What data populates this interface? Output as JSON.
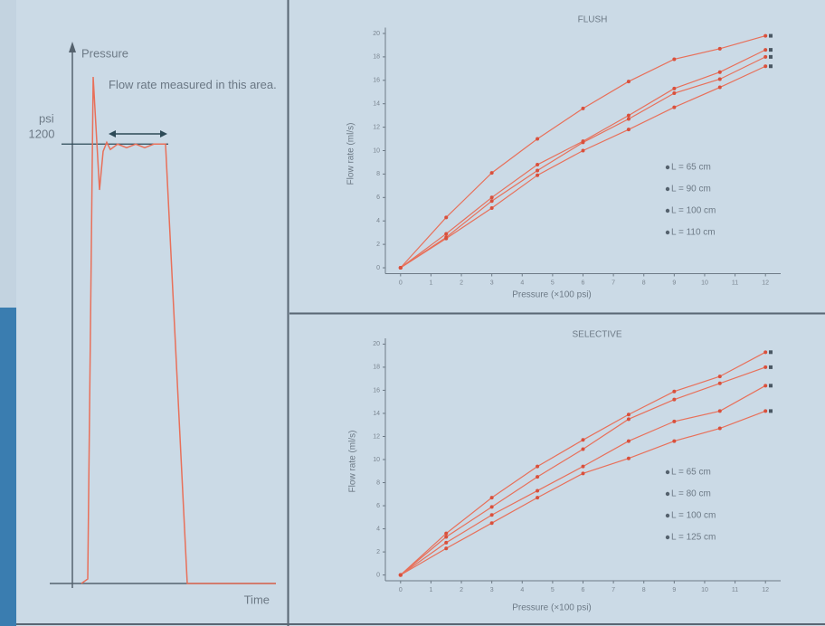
{
  "chart_data": [
    {
      "type": "schematic",
      "ylabel": "Pressure",
      "yunit": "psi",
      "xlabel": "Time",
      "annotation": "Flow rate measured in this area.",
      "ylim": [
        0,
        1470
      ],
      "yticks": [
        1200
      ],
      "color": "#e8705a"
    },
    {
      "type": "line",
      "title": "FLUSH",
      "xlabel": "Pressure (×100 psi)",
      "ylabel": "Flow rate (ml/s)",
      "x": [
        0,
        1.5,
        3,
        4.5,
        6,
        7.5,
        9,
        10.5,
        12
      ],
      "xlim": [
        -0.5,
        12.5
      ],
      "xticks": [
        0,
        1,
        2,
        3,
        4,
        5,
        6,
        7,
        8,
        9,
        10,
        11,
        12
      ],
      "ylim": [
        -0.5,
        20.5
      ],
      "yticks": [
        0,
        2,
        4,
        6,
        8,
        10,
        12,
        14,
        16,
        18,
        20
      ],
      "series": [
        {
          "name": "L = 65 cm",
          "color": "#e8705a",
          "values": [
            0,
            4.3,
            8.1,
            11,
            13.6,
            15.9,
            17.8,
            18.7,
            19.8
          ]
        },
        {
          "name": "L = 90 cm",
          "color": "#e8705a",
          "values": [
            0,
            2.9,
            6.0,
            8.8,
            10.8,
            13,
            15.3,
            16.7,
            18.6
          ]
        },
        {
          "name": "L = 100 cm",
          "color": "#e8705a",
          "values": [
            0,
            2.6,
            5.7,
            8.3,
            10.7,
            12.7,
            14.9,
            16.1,
            18
          ]
        },
        {
          "name": "L = 110 cm",
          "color": "#e8705a",
          "values": [
            0,
            2.5,
            5.1,
            7.9,
            10,
            11.8,
            13.7,
            15.4,
            17.2
          ]
        }
      ]
    },
    {
      "type": "line",
      "title": "SELECTIVE",
      "xlabel": "Pressure (×100 psi)",
      "ylabel": "Flow rate (ml/s)",
      "x": [
        0,
        1.5,
        3,
        4.5,
        6,
        7.5,
        9,
        10.5,
        12
      ],
      "xlim": [
        -0.5,
        12.5
      ],
      "xticks": [
        0,
        1,
        2,
        3,
        4,
        5,
        6,
        7,
        8,
        9,
        10,
        11,
        12
      ],
      "ylim": [
        -0.5,
        20.5
      ],
      "yticks": [
        0,
        2,
        4,
        6,
        8,
        10,
        12,
        14,
        16,
        18,
        20
      ],
      "series": [
        {
          "name": "L = 65 cm",
          "color": "#e8705a",
          "values": [
            0,
            3.6,
            6.7,
            9.4,
            11.7,
            13.9,
            15.9,
            17.2,
            19.3
          ]
        },
        {
          "name": "L = 80 cm",
          "color": "#e8705a",
          "values": [
            0,
            3.3,
            5.9,
            8.5,
            10.9,
            13.5,
            15.2,
            16.6,
            18
          ]
        },
        {
          "name": "L = 100 cm",
          "color": "#e8705a",
          "values": [
            0,
            2.8,
            5.2,
            7.3,
            9.4,
            11.6,
            13.3,
            14.2,
            16.4
          ]
        },
        {
          "name": "L = 125 cm",
          "color": "#e8705a",
          "values": [
            0,
            2.3,
            4.5,
            6.7,
            8.8,
            10.1,
            11.6,
            12.7,
            14.2
          ]
        }
      ]
    }
  ]
}
